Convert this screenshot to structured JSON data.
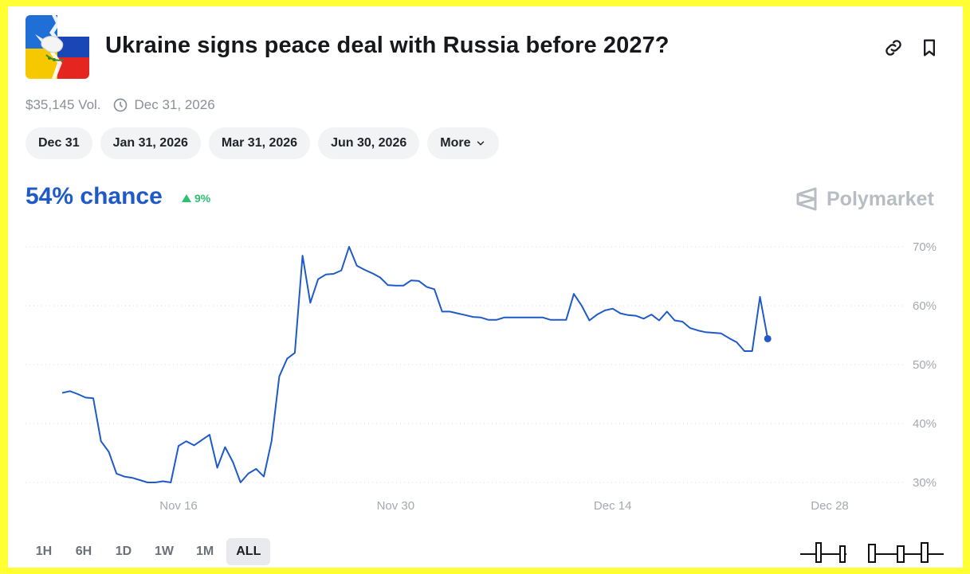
{
  "market": {
    "title": "Ukraine signs peace deal with Russia before 2027?",
    "volume": "$35,145 Vol.",
    "end_date": "Dec 31, 2026",
    "icon": "ukraine-russia-flag-dove"
  },
  "header_icons": [
    "link-icon",
    "bookmark-icon"
  ],
  "date_pills": [
    "Dec 31",
    "Jan 31, 2026",
    "Mar 31, 2026",
    "Jun 30, 2026",
    "More"
  ],
  "odds": {
    "chance": "54% chance",
    "delta": "9%",
    "delta_color": "#2fbf71"
  },
  "brand": "Polymarket",
  "range_buttons": [
    "1H",
    "6H",
    "1D",
    "1W",
    "1M",
    "ALL"
  ],
  "active_range": "ALL",
  "colors": {
    "line": "#1f5ac8",
    "accent": "#1f5ac8",
    "background": "#ffff33"
  },
  "chart_data": {
    "type": "line",
    "ylim": [
      30,
      70
    ],
    "y_ticks": [
      "70%",
      "60%",
      "50%",
      "40%",
      "30%"
    ],
    "x_ticks": [
      "Nov 16",
      "Nov 30",
      "Dec 14",
      "Dec 28"
    ],
    "grid": true,
    "series": [
      {
        "x": [
          8.5,
          9.0,
          9.5,
          10.0,
          10.5,
          11.0,
          11.5,
          12.0,
          12.5,
          13.0,
          13.5,
          14.0,
          14.5,
          15.0,
          15.5,
          16.0,
          16.5,
          17.0,
          17.5,
          18.0,
          18.5,
          19.0,
          19.5,
          20.0,
          20.5,
          21.0,
          21.5,
          22.0,
          22.5,
          23.0,
          23.5,
          24.0,
          24.5,
          25.0,
          25.5,
          26.0,
          26.5,
          27.0,
          27.5,
          28.0,
          28.5,
          29.0,
          29.5,
          30.0,
          30.5,
          31.0,
          31.5,
          32.0,
          32.5,
          33.0,
          33.5,
          34.0,
          34.5,
          35.0,
          35.5,
          36.0,
          36.5,
          37.0,
          37.5,
          38.0,
          38.5,
          39.0,
          39.5,
          40.0,
          40.5,
          41.0,
          41.5,
          42.0,
          42.5,
          43.0,
          43.5,
          44.0,
          44.5,
          45.0,
          45.5,
          46.0,
          46.5,
          47.0,
          47.5,
          48.0,
          48.5,
          49.0,
          49.5,
          50.0,
          50.5,
          51.0,
          51.5,
          52.0,
          52.5,
          53.0,
          53.5,
          54.0
        ],
        "y": [
          45.2,
          45.5,
          45.0,
          44.4,
          44.3,
          37.0,
          35.2,
          31.5,
          31.0,
          30.8,
          30.4,
          30.0,
          30.0,
          30.2,
          30.0,
          36.2,
          37.0,
          36.3,
          37.2,
          38.1,
          32.5,
          36.0,
          33.5,
          30.0,
          31.5,
          32.3,
          31.0,
          37.0,
          48.0,
          51.0,
          52.0,
          68.5,
          60.5,
          64.5,
          65.3,
          65.4,
          66.0,
          70.0,
          66.8,
          66.1,
          65.5,
          64.8,
          63.5,
          63.4,
          63.4,
          64.3,
          64.2,
          63.2,
          62.8,
          59.0,
          59.0,
          58.7,
          58.4,
          58.1,
          58.0,
          57.6,
          57.6,
          58.0,
          58.0,
          58.0,
          58.0,
          58.0,
          58.0,
          57.6,
          57.6,
          57.6,
          62.0,
          60.0,
          57.5,
          58.5,
          59.2,
          59.5,
          58.7,
          58.4,
          58.3,
          57.8,
          58.5,
          57.5,
          59.0,
          57.5,
          57.3,
          56.2,
          55.8,
          55.5,
          55.4,
          55.3,
          54.5,
          53.8,
          52.3,
          52.3,
          61.5,
          54.4
        ]
      }
    ]
  }
}
